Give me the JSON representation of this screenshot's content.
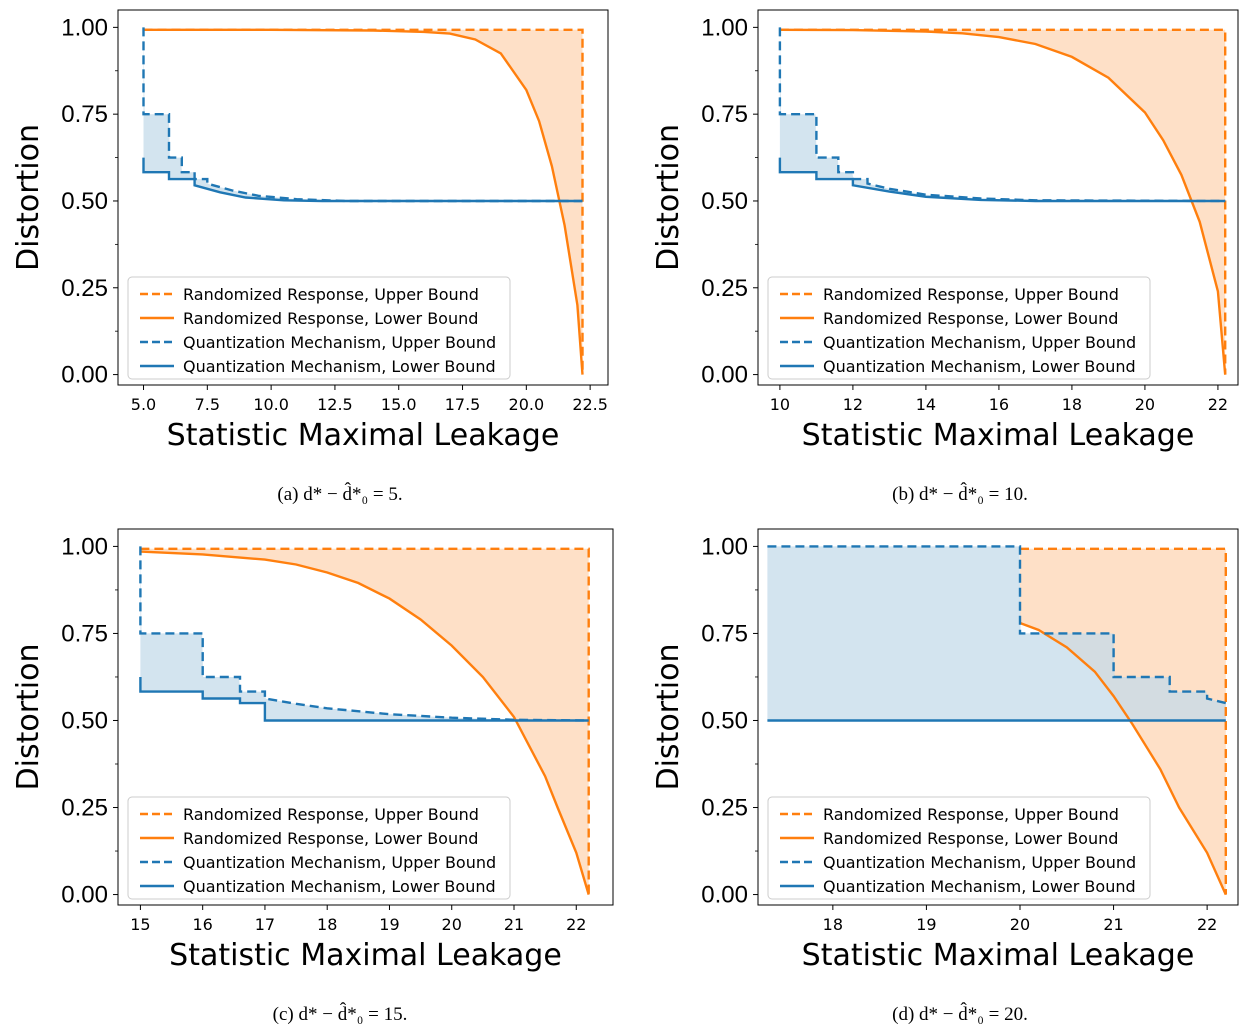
{
  "colors": {
    "randomized_response": "#ff7f0e",
    "quantization": "#1f77b4",
    "rr_fill": "#fdd6b4",
    "qm_fill": "#c4dbea",
    "overlap_fill": "#c5c3bd"
  },
  "legend": [
    {
      "label": "Randomized Response, Upper Bound",
      "color": "#ff7f0e",
      "dashed": true
    },
    {
      "label": "Randomized Response, Lower Bound",
      "color": "#ff7f0e",
      "dashed": false
    },
    {
      "label": "Quantization Mechanism, Upper Bound",
      "color": "#1f77b4",
      "dashed": true
    },
    {
      "label": "Quantization Mechanism, Lower Bound",
      "color": "#1f77b4",
      "dashed": false
    }
  ],
  "chart_data": [
    {
      "type": "line",
      "caption": "(a) d* − d̂*₀ = 5.",
      "xlabel": "Statistic Maximal Leakage",
      "ylabel": "Distortion",
      "xlim": [
        4.0,
        23.2
      ],
      "ylim": [
        -0.03,
        1.05
      ],
      "xticks": [
        "5.0",
        "7.5",
        "10.0",
        "12.5",
        "15.0",
        "17.5",
        "20.0",
        "22.5"
      ],
      "xtick_values": [
        5.0,
        7.5,
        10.0,
        12.5,
        15.0,
        17.5,
        20.0,
        22.5
      ],
      "yticks": [
        "0.00",
        "0.25",
        "0.50",
        "0.75",
        "1.00"
      ],
      "ytick_values": [
        0.0,
        0.25,
        0.5,
        0.75,
        1.0
      ],
      "legend_position": "lower-left",
      "series": [
        {
          "name": "Randomized Response, Upper Bound",
          "x": [
            5.0,
            22.2,
            22.2
          ],
          "y": [
            0.993,
            0.993,
            0.0
          ]
        },
        {
          "name": "Randomized Response, Lower Bound",
          "x": [
            5.0,
            10.0,
            14.0,
            16.0,
            17.0,
            18.0,
            19.0,
            20.0,
            20.5,
            21.0,
            21.5,
            22.0,
            22.2
          ],
          "y": [
            0.993,
            0.993,
            0.991,
            0.987,
            0.982,
            0.965,
            0.925,
            0.82,
            0.73,
            0.6,
            0.43,
            0.2,
            0.0
          ]
        },
        {
          "name": "Quantization Mechanism, Upper Bound",
          "x": [
            5.0,
            5.0,
            6.0,
            6.0,
            6.5,
            6.5,
            7.0,
            7.0,
            7.5,
            7.5,
            8.5,
            9.5,
            11.0,
            13.0,
            22.2
          ],
          "y": [
            1.0,
            0.75,
            0.75,
            0.625,
            0.625,
            0.583,
            0.583,
            0.563,
            0.563,
            0.55,
            0.53,
            0.515,
            0.505,
            0.5,
            0.5
          ]
        },
        {
          "name": "Quantization Mechanism, Lower Bound",
          "x": [
            5.0,
            5.0,
            6.0,
            6.0,
            7.0,
            7.0,
            8.0,
            9.0,
            10.5,
            12.0,
            22.2
          ],
          "y": [
            0.625,
            0.583,
            0.583,
            0.563,
            0.563,
            0.545,
            0.525,
            0.51,
            0.502,
            0.5,
            0.5
          ]
        }
      ]
    },
    {
      "type": "line",
      "caption": "(b) d* − d̂*₀ = 10.",
      "xlabel": "Statistic Maximal Leakage",
      "ylabel": "Distortion",
      "xlim": [
        9.4,
        22.55
      ],
      "ylim": [
        -0.03,
        1.05
      ],
      "xticks": [
        "10",
        "12",
        "14",
        "16",
        "18",
        "20",
        "22"
      ],
      "xtick_values": [
        10,
        12,
        14,
        16,
        18,
        20,
        22
      ],
      "yticks": [
        "0.00",
        "0.25",
        "0.50",
        "0.75",
        "1.00"
      ],
      "ytick_values": [
        0.0,
        0.25,
        0.5,
        0.75,
        1.0
      ],
      "legend_position": "lower-left",
      "series": [
        {
          "name": "Randomized Response, Upper Bound",
          "x": [
            10.0,
            22.2,
            22.2
          ],
          "y": [
            0.993,
            0.993,
            0.0
          ]
        },
        {
          "name": "Randomized Response, Lower Bound",
          "x": [
            10.0,
            12.0,
            14.0,
            15.0,
            16.0,
            17.0,
            18.0,
            19.0,
            20.0,
            20.5,
            21.0,
            21.5,
            22.0,
            22.2
          ],
          "y": [
            0.993,
            0.992,
            0.988,
            0.983,
            0.972,
            0.952,
            0.915,
            0.855,
            0.755,
            0.675,
            0.575,
            0.44,
            0.24,
            0.0
          ]
        },
        {
          "name": "Quantization Mechanism, Upper Bound",
          "x": [
            10.0,
            10.0,
            11.0,
            11.0,
            11.6,
            11.6,
            12.0,
            12.0,
            12.4,
            12.4,
            13.0,
            14.0,
            15.5,
            17.0,
            22.2
          ],
          "y": [
            1.0,
            0.75,
            0.75,
            0.625,
            0.625,
            0.583,
            0.583,
            0.563,
            0.563,
            0.55,
            0.535,
            0.518,
            0.507,
            0.502,
            0.5
          ]
        },
        {
          "name": "Quantization Mechanism, Lower Bound",
          "x": [
            10.0,
            10.0,
            11.0,
            11.0,
            12.0,
            12.0,
            13.0,
            14.0,
            15.5,
            17.0,
            22.2
          ],
          "y": [
            0.625,
            0.583,
            0.583,
            0.563,
            0.563,
            0.545,
            0.527,
            0.512,
            0.503,
            0.5,
            0.5
          ]
        }
      ]
    },
    {
      "type": "line",
      "caption": "(c) d* − d̂*₀ = 15.",
      "xlabel": "Statistic Maximal Leakage",
      "ylabel": "Distortion",
      "xlim": [
        14.64,
        22.59
      ],
      "ylim": [
        -0.03,
        1.05
      ],
      "xticks": [
        "15",
        "16",
        "17",
        "18",
        "19",
        "20",
        "21",
        "22"
      ],
      "xtick_values": [
        15,
        16,
        17,
        18,
        19,
        20,
        21,
        22
      ],
      "yticks": [
        "0.00",
        "0.25",
        "0.50",
        "0.75",
        "1.00"
      ],
      "ytick_values": [
        0.0,
        0.25,
        0.5,
        0.75,
        1.0
      ],
      "legend_position": "lower-left",
      "series": [
        {
          "name": "Randomized Response, Upper Bound",
          "x": [
            15.0,
            22.2,
            22.2
          ],
          "y": [
            0.993,
            0.993,
            0.0
          ]
        },
        {
          "name": "Randomized Response, Lower Bound",
          "x": [
            15.0,
            16.0,
            17.0,
            17.5,
            18.0,
            18.5,
            19.0,
            19.5,
            20.0,
            20.5,
            21.0,
            21.5,
            21.7,
            22.0,
            22.2
          ],
          "y": [
            0.985,
            0.977,
            0.962,
            0.948,
            0.925,
            0.895,
            0.85,
            0.79,
            0.715,
            0.625,
            0.51,
            0.34,
            0.25,
            0.12,
            0.0
          ]
        },
        {
          "name": "Quantization Mechanism, Upper Bound",
          "x": [
            15.0,
            15.0,
            16.0,
            16.0,
            16.6,
            16.6,
            17.0,
            17.0,
            17.5,
            18.0,
            19.0,
            20.0,
            21.0,
            22.2
          ],
          "y": [
            1.0,
            0.75,
            0.75,
            0.625,
            0.625,
            0.583,
            0.583,
            0.563,
            0.548,
            0.535,
            0.518,
            0.508,
            0.502,
            0.5
          ]
        },
        {
          "name": "Quantization Mechanism, Lower Bound",
          "x": [
            15.0,
            15.0,
            16.0,
            16.0,
            16.6,
            16.6,
            17.0,
            17.0,
            22.2
          ],
          "y": [
            0.625,
            0.583,
            0.583,
            0.563,
            0.563,
            0.55,
            0.55,
            0.5,
            0.5
          ]
        }
      ]
    },
    {
      "type": "line",
      "caption": "(d) d* − d̂*₀ = 20.",
      "xlabel": "Statistic Maximal Leakage",
      "ylabel": "Distortion",
      "xlim": [
        17.2,
        22.33
      ],
      "ylim": [
        -0.03,
        1.05
      ],
      "xticks": [
        "18",
        "19",
        "20",
        "21",
        "22"
      ],
      "xtick_values": [
        18,
        19,
        20,
        21,
        22
      ],
      "yticks": [
        "0.00",
        "0.25",
        "0.50",
        "0.75",
        "1.00"
      ],
      "ytick_values": [
        0.0,
        0.25,
        0.5,
        0.75,
        1.0
      ],
      "legend_position": "lower-left",
      "series": [
        {
          "name": "Randomized Response, Upper Bound",
          "x": [
            20.0,
            22.2,
            22.2
          ],
          "y": [
            0.993,
            0.993,
            0.0
          ]
        },
        {
          "name": "Randomized Response, Lower Bound",
          "x": [
            20.0,
            20.2,
            20.5,
            20.8,
            21.0,
            21.2,
            21.5,
            21.7,
            22.0,
            22.2
          ],
          "y": [
            0.78,
            0.76,
            0.71,
            0.64,
            0.57,
            0.49,
            0.36,
            0.25,
            0.12,
            0.0
          ]
        },
        {
          "name": "Quantization Mechanism, Upper Bound",
          "x": [
            17.3,
            20.0,
            20.0,
            21.0,
            21.0,
            21.6,
            21.6,
            22.0,
            22.0,
            22.2
          ],
          "y": [
            1.0,
            1.0,
            0.75,
            0.75,
            0.625,
            0.625,
            0.583,
            0.583,
            0.563,
            0.55
          ]
        },
        {
          "name": "Quantization Mechanism, Lower Bound",
          "x": [
            17.3,
            22.2
          ],
          "y": [
            0.5,
            0.5
          ]
        }
      ]
    }
  ]
}
